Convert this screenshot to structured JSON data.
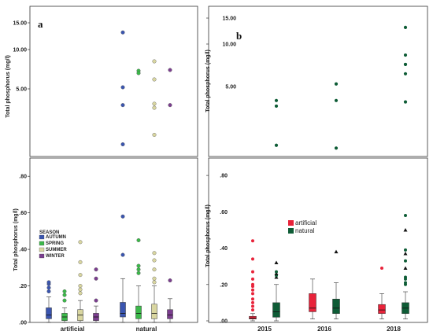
{
  "chart_data": [
    {
      "panel": "a",
      "type": "boxplot",
      "ylabel": "Total phosphorus (mg/l)",
      "x_categories": [
        "artificial",
        "natural"
      ],
      "upper_ticks": [
        "15.00",
        "10.00",
        "5.00"
      ],
      "lower_ticks": [
        ".80",
        ".60",
        ".40",
        ".20",
        ".00"
      ],
      "legend_title": "SEASON",
      "series": [
        {
          "name": "AUTUMN",
          "color": "#3a55b0"
        },
        {
          "name": "SPRING",
          "color": "#3cb84a"
        },
        {
          "name": "SUMMER",
          "color": "#d9d6a0"
        },
        {
          "name": "WINTER",
          "color": "#7b3e8f"
        }
      ],
      "boxes": [
        {
          "group": "artificial",
          "season": "AUTUMN",
          "q1": 0.02,
          "median": 0.04,
          "q3": 0.08,
          "wlo": 0.0,
          "whi": 0.14,
          "outliers": [
            0.17,
            0.19,
            0.21,
            0.22
          ]
        },
        {
          "group": "artificial",
          "season": "SPRING",
          "q1": 0.01,
          "median": 0.03,
          "q3": 0.05,
          "wlo": 0.0,
          "whi": 0.08,
          "outliers": [
            0.12,
            0.15,
            0.17
          ]
        },
        {
          "group": "artificial",
          "season": "SUMMER",
          "q1": 0.01,
          "median": 0.04,
          "q3": 0.07,
          "wlo": 0.0,
          "whi": 0.12,
          "outliers": [
            0.16,
            0.18,
            0.2,
            0.26,
            0.33,
            0.44
          ]
        },
        {
          "group": "artificial",
          "season": "WINTER",
          "q1": 0.01,
          "median": 0.03,
          "q3": 0.05,
          "wlo": 0.0,
          "whi": 0.09,
          "outliers": [
            0.12,
            0.24,
            0.29
          ]
        },
        {
          "group": "natural",
          "season": "AUTUMN",
          "q1": 0.03,
          "median": 0.05,
          "q3": 0.11,
          "wlo": 0.0,
          "whi": 0.24,
          "outliers": [
            0.37,
            0.58
          ]
        },
        {
          "group": "natural",
          "season": "SPRING",
          "q1": 0.02,
          "median": 0.05,
          "q3": 0.09,
          "wlo": 0.0,
          "whi": 0.2,
          "outliers": [
            0.27,
            0.29,
            0.31,
            0.45
          ]
        },
        {
          "group": "natural",
          "season": "SUMMER",
          "q1": 0.02,
          "median": 0.05,
          "q3": 0.1,
          "wlo": 0.0,
          "whi": 0.2,
          "outliers": [
            0.22,
            0.24,
            0.29,
            0.34,
            0.38
          ]
        },
        {
          "group": "natural",
          "season": "WINTER",
          "q1": 0.02,
          "median": 0.04,
          "q3": 0.07,
          "wlo": 0.0,
          "whi": 0.13,
          "outliers": [
            0.23
          ]
        }
      ],
      "upper_points": [
        {
          "group": "natural",
          "season": "AUTUMN",
          "values": [
            13.2,
            5.2,
            3.8,
            0.9
          ]
        },
        {
          "group": "natural",
          "season": "SPRING",
          "values": [
            7.3,
            7.0
          ]
        },
        {
          "group": "natural",
          "season": "SUMMER",
          "values": [
            8.5,
            6.2,
            3.9,
            3.6,
            1.6
          ]
        },
        {
          "group": "natural",
          "season": "WINTER",
          "values": [
            7.4,
            3.8
          ]
        }
      ]
    },
    {
      "panel": "b",
      "type": "boxplot",
      "ylabel": "Total phosphorus (mg/l)",
      "x_categories": [
        "2015",
        "2016",
        "2018"
      ],
      "upper_ticks": [
        "15.00",
        "10.00",
        "5.00"
      ],
      "lower_ticks": [
        ".80",
        ".60",
        ".40",
        ".20",
        ".00"
      ],
      "series": [
        {
          "name": "artificial",
          "color": "#e8233a"
        },
        {
          "name": "natural",
          "color": "#0e5c36"
        }
      ],
      "boxes": [
        {
          "group": "2015",
          "series": "artificial",
          "q1": 0.01,
          "median": 0.015,
          "q3": 0.025,
          "wlo": 0.0,
          "whi": 0.04,
          "outliers": [
            0.06,
            0.08,
            0.1,
            0.12,
            0.15,
            0.17,
            0.19,
            0.2,
            0.23,
            0.27,
            0.34,
            0.44
          ]
        },
        {
          "group": "2015",
          "series": "natural",
          "q1": 0.02,
          "median": 0.05,
          "q3": 0.1,
          "wlo": 0.0,
          "whi": 0.2,
          "outliers": [
            0.24,
            0.25,
            0.26,
            0.27,
            0.32
          ]
        },
        {
          "group": "2016",
          "series": "artificial",
          "q1": 0.05,
          "median": 0.07,
          "q3": 0.15,
          "wlo": 0.01,
          "whi": 0.23,
          "outliers": []
        },
        {
          "group": "2016",
          "series": "natural",
          "q1": 0.04,
          "median": 0.07,
          "q3": 0.12,
          "wlo": 0.01,
          "whi": 0.21,
          "outliers": [
            0.38
          ]
        },
        {
          "group": "2018",
          "series": "artificial",
          "q1": 0.04,
          "median": 0.06,
          "q3": 0.09,
          "wlo": 0.01,
          "whi": 0.15,
          "outliers": [
            0.29
          ]
        },
        {
          "group": "2018",
          "series": "natural",
          "q1": 0.04,
          "median": 0.07,
          "q3": 0.1,
          "wlo": 0.01,
          "whi": 0.16,
          "outliers": [
            0.2,
            0.21,
            0.23,
            0.24,
            0.29,
            0.33,
            0.37,
            0.39,
            0.5,
            0.58
          ]
        }
      ],
      "upper_points": [
        {
          "group": "2015",
          "series": "natural",
          "values": [
            4.0,
            3.6,
            0.8
          ]
        },
        {
          "group": "2016",
          "series": "natural",
          "values": [
            5.3,
            4.0,
            0.6
          ]
        },
        {
          "group": "2018",
          "series": "natural",
          "values": [
            13.2,
            8.7,
            7.6,
            7.6,
            6.5,
            3.9
          ]
        }
      ]
    }
  ],
  "panels": {
    "a": {
      "letter": "a",
      "ylabel": "Total phosphorus (mg/l)",
      "cat1": "artificial",
      "cat2": "natural",
      "legend_title": "SEASON"
    },
    "b": {
      "letter": "b",
      "ylabel": "Total phosphorus (mg/l)"
    }
  }
}
